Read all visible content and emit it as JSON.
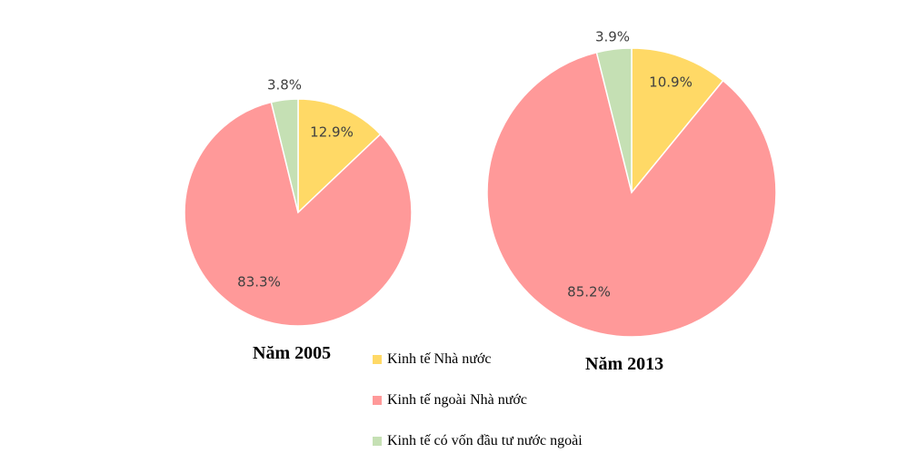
{
  "chart_data": [
    {
      "type": "pie",
      "title": "Năm 2005",
      "series": [
        {
          "name": "Kinh tế Nhà nước",
          "value": 12.9,
          "label": "12.9%"
        },
        {
          "name": "Kinh tế ngoài Nhà nước",
          "value": 83.3,
          "label": "83.3%"
        },
        {
          "name": "Kinh tế có vốn đầu tư nước ngoài",
          "value": 3.8,
          "label": "3.8%"
        }
      ]
    },
    {
      "type": "pie",
      "title": "Năm 2013",
      "series": [
        {
          "name": "Kinh tế Nhà nước",
          "value": 10.9,
          "label": "10.9%"
        },
        {
          "name": "Kinh tế ngoài Nhà nước",
          "value": 85.2,
          "label": "85.2%"
        },
        {
          "name": "Kinh tế có vốn đầu tư nước ngoài",
          "value": 3.9,
          "label": "3.9%"
        }
      ]
    }
  ],
  "legend": [
    {
      "label": "Kinh  tế Nhà nước",
      "color": "#ffd966"
    },
    {
      "label": "Kinh  tế ngoài Nhà nước",
      "color": "#ff9999"
    },
    {
      "label": "Kinh  tế có vốn đầu tư nước ngoài",
      "color": "#c5e0b4"
    }
  ],
  "colors": [
    "#ffd966",
    "#ff9999",
    "#c5e0b4"
  ]
}
